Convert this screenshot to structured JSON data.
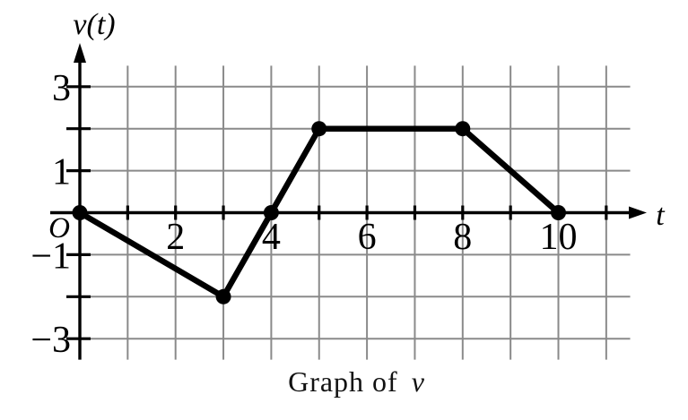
{
  "figure": {
    "caption": {
      "prefix": "Graph of",
      "variable": "v"
    }
  },
  "chart_data": {
    "type": "line",
    "title": "Graph of v",
    "xlabel": "t",
    "ylabel": "v(t)",
    "origin_label": "O",
    "points": [
      [
        0,
        0
      ],
      [
        3,
        -2
      ],
      [
        4,
        0
      ],
      [
        5,
        2
      ],
      [
        8,
        2
      ],
      [
        10,
        0
      ]
    ],
    "xlim": [
      0,
      11.5
    ],
    "ylim": [
      -3.5,
      3.5
    ],
    "grid": {
      "visible": true,
      "x_lines": [
        1,
        2,
        3,
        4,
        5,
        6,
        7,
        8,
        9,
        10,
        11
      ],
      "y_lines": [
        -3,
        -2,
        -1,
        1,
        2,
        3
      ]
    },
    "ticks": {
      "x": [
        1,
        2,
        3,
        4,
        5,
        6,
        7,
        8,
        9,
        10,
        11
      ],
      "y": [
        -3,
        -2,
        -1,
        1,
        2,
        3
      ]
    },
    "x_tick_labels": [
      {
        "value": 2,
        "label": "2"
      },
      {
        "value": 4,
        "label": "4"
      },
      {
        "value": 6,
        "label": "6"
      },
      {
        "value": 8,
        "label": "8"
      },
      {
        "value": 10,
        "label": "10"
      }
    ],
    "y_tick_labels": [
      {
        "value": 3,
        "label": "3"
      },
      {
        "value": 1,
        "label": "1"
      },
      {
        "value": -1,
        "label": "−1"
      },
      {
        "value": -3,
        "label": "−3"
      }
    ],
    "colors": {
      "curve": "#000000",
      "axis": "#000000",
      "grid": "#8a8a8a",
      "background": "#ffffff"
    }
  }
}
